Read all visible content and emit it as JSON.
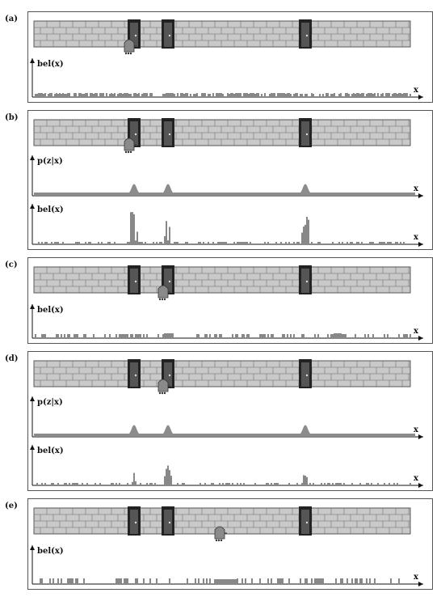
{
  "panels": [
    {
      "id": "a",
      "label": "(a)",
      "robot_door": null,
      "robot_x": 160,
      "plots": [
        {
          "type": "bel",
          "label": "bel(x)",
          "x_label": "x",
          "pattern": "uniform"
        }
      ]
    },
    {
      "id": "b",
      "label": "(b)",
      "robot_x": 160,
      "plots": [
        {
          "type": "pz",
          "label": "p(z|x)",
          "x_label": "x"
        },
        {
          "type": "bel",
          "label": "bel(x)",
          "x_label": "x",
          "pattern": "doors"
        }
      ]
    },
    {
      "id": "c",
      "label": "(c)",
      "robot_x": 202,
      "plots": [
        {
          "type": "bel",
          "label": "bel(x)",
          "x_label": "x",
          "pattern": "shifted"
        }
      ]
    },
    {
      "id": "d",
      "label": "(d)",
      "robot_x": 202,
      "plots": [
        {
          "type": "pz",
          "label": "p(z|x)",
          "x_label": "x"
        },
        {
          "type": "bel",
          "label": "bel(x)",
          "x_label": "x",
          "pattern": "peak"
        }
      ]
    },
    {
      "id": "e",
      "label": "(e)",
      "robot_x": 272,
      "plots": [
        {
          "type": "bel",
          "label": "bel(x)",
          "x_label": "x",
          "pattern": "moved"
        }
      ]
    }
  ],
  "colors": {
    "wall": "#c9c9c9",
    "brick_line": "#666666",
    "door": "#222222",
    "robot": "#8a8a8a",
    "gaussian": "#8c8c8c"
  }
}
